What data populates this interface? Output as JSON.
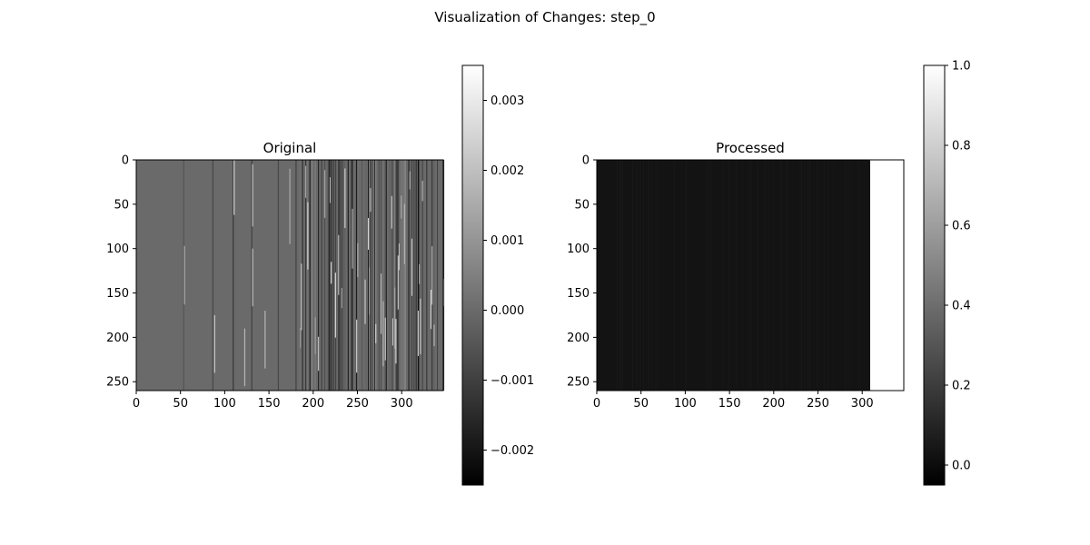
{
  "figure": {
    "title": "Visualization of Changes: step_0",
    "background": "#ffffff"
  },
  "chart_data": [
    {
      "type": "heatmap",
      "title": "Original",
      "colormap": "gray",
      "x_range": [
        0,
        347
      ],
      "y_range": [
        0,
        260
      ],
      "x_ticks": [
        0,
        50,
        100,
        150,
        200,
        250,
        300
      ],
      "y_ticks": [
        0,
        50,
        100,
        150,
        200,
        250
      ],
      "colorbar": {
        "range": [
          -0.0025,
          0.0035
        ],
        "ticks": [
          0.003,
          0.002,
          0.001,
          0.0,
          -0.001,
          -0.002
        ],
        "tick_labels": [
          "0.003",
          "0.002",
          "0.001",
          "0.000",
          "−0.001",
          "−0.002"
        ]
      },
      "base_value": 0.0,
      "stripes": [
        {
          "x": 53,
          "value": -0.0005
        },
        {
          "x": 54,
          "value": 0.0015,
          "y_start": 97,
          "y_end": 163
        },
        {
          "x": 86,
          "value": -0.0008
        },
        {
          "x": 88,
          "value": 0.0022,
          "y_start": 175,
          "y_end": 240
        },
        {
          "x": 109,
          "value": -0.0012
        },
        {
          "x": 110,
          "value": 0.0025,
          "y_start": 0,
          "y_end": 62
        },
        {
          "x": 122,
          "value": 0.0018,
          "y_start": 190,
          "y_end": 255
        },
        {
          "x": 130,
          "value": -0.001
        },
        {
          "x": 131,
          "value": 0.002,
          "y_start": 5,
          "y_end": 75
        },
        {
          "x": 131,
          "value": 0.002,
          "y_start": 100,
          "y_end": 165
        },
        {
          "x": 145,
          "value": 0.0018,
          "y_start": 170,
          "y_end": 235
        },
        {
          "x": 160,
          "value": -0.0008
        },
        {
          "x": 173,
          "value": 0.0015,
          "y_start": 10,
          "y_end": 95
        },
        {
          "x": 180,
          "value": -0.001
        }
      ],
      "dense_region": {
        "x_start": 185,
        "x_end": 347,
        "value_min": -0.0022,
        "value_max": 0.003
      }
    },
    {
      "type": "heatmap",
      "title": "Processed",
      "colormap": "gray",
      "x_range": [
        0,
        347
      ],
      "y_range": [
        0,
        260
      ],
      "x_ticks": [
        0,
        50,
        100,
        150,
        200,
        250,
        300
      ],
      "y_ticks": [
        0,
        50,
        100,
        150,
        200,
        250
      ],
      "colorbar": {
        "range": [
          -0.05,
          1.0
        ],
        "ticks": [
          1.0,
          0.8,
          0.6,
          0.4,
          0.2,
          0.0
        ],
        "tick_labels": [
          "1.0",
          "0.8",
          "0.6",
          "0.4",
          "0.2",
          "0.0"
        ]
      },
      "regions": [
        {
          "x_start": 0,
          "x_end": 309,
          "value": 0.03
        },
        {
          "x_start": 309,
          "x_end": 347,
          "value": 1.0
        }
      ]
    }
  ]
}
